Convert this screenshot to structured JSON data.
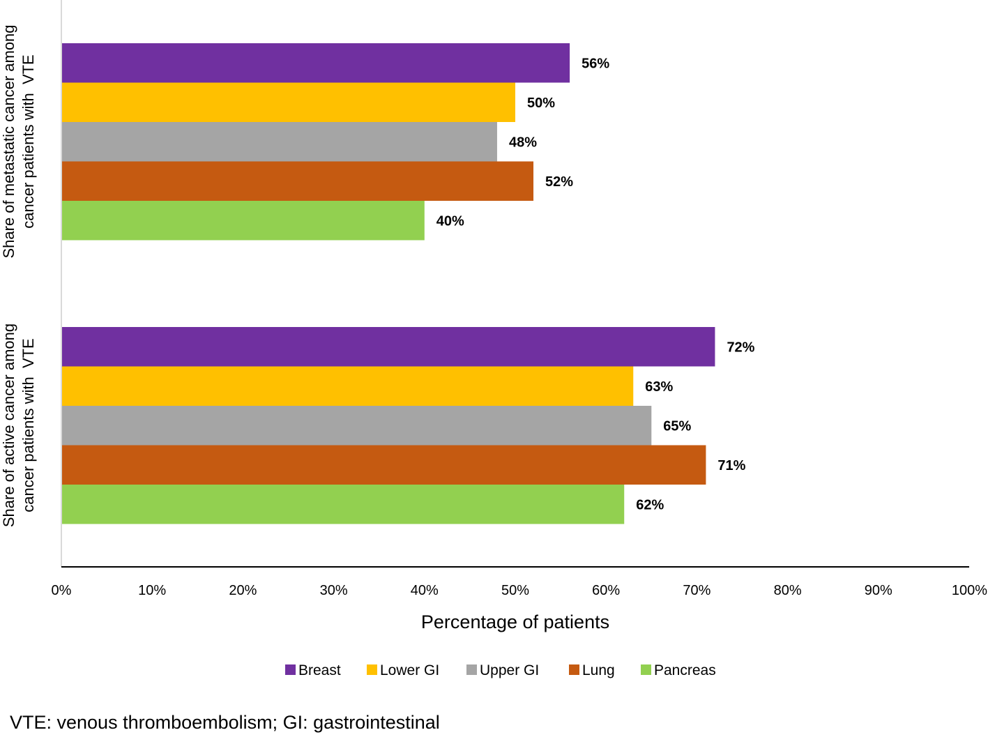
{
  "chart_data": {
    "type": "bar",
    "orientation": "horizontal",
    "categories": [
      [
        "Share of metastatic cancer among",
        "cancer patients with  VTE"
      ],
      [
        "Share of active cancer among",
        "cancer patients with  VTE"
      ]
    ],
    "series": [
      {
        "name": "Breast",
        "color": "#7030A0",
        "values": [
          56,
          72
        ],
        "labels": [
          "56%",
          "72%"
        ]
      },
      {
        "name": "Lower GI",
        "color": "#FFC000",
        "values": [
          50,
          63
        ],
        "labels": [
          "50%",
          "63%"
        ]
      },
      {
        "name": "Upper GI",
        "color": "#A5A5A5",
        "values": [
          48,
          65
        ],
        "labels": [
          "48%",
          "65%"
        ]
      },
      {
        "name": "Lung",
        "color": "#C55A11",
        "values": [
          52,
          71
        ],
        "labels": [
          "52%",
          "71%"
        ]
      },
      {
        "name": "Pancreas",
        "color": "#92D050",
        "values": [
          40,
          62
        ],
        "labels": [
          "40%",
          "62%"
        ]
      }
    ],
    "xlabel": "Percentage of patients",
    "xlim": [
      0,
      100
    ],
    "xticks": [
      "0%",
      "10%",
      "20%",
      "30%",
      "40%",
      "50%",
      "60%",
      "70%",
      "80%",
      "90%",
      "100%"
    ],
    "grid": false,
    "legend_position": "bottom"
  },
  "footnote": "VTE: venous thromboembolism; GI: gastrointestinal"
}
